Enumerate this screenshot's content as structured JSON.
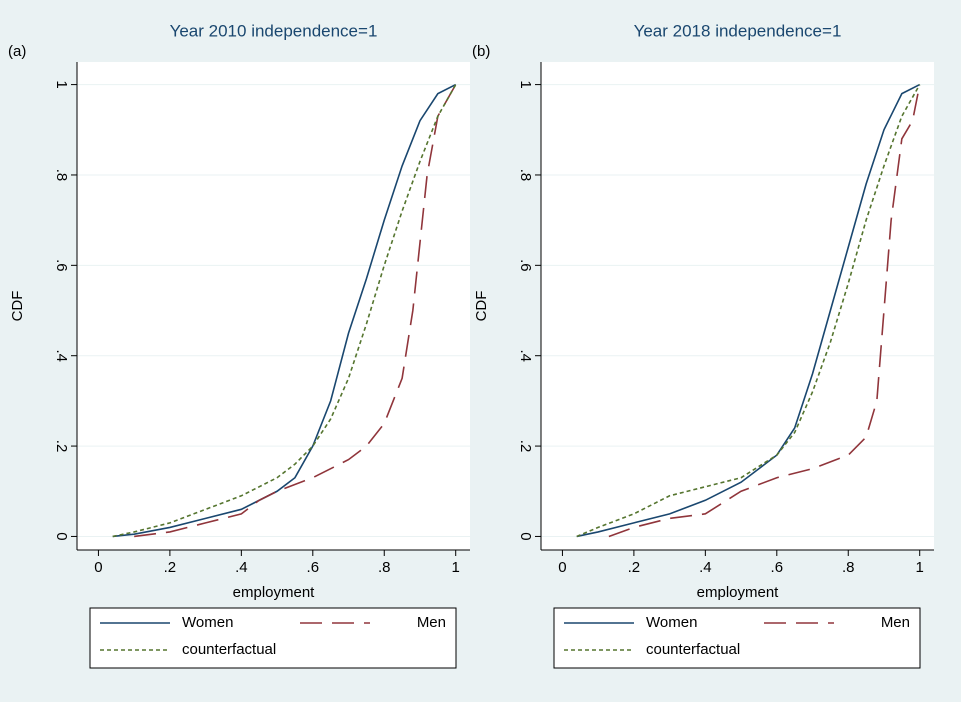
{
  "chart_data": [
    {
      "type": "line",
      "panel_label": "(a)",
      "title": "Year 2010 independence=1",
      "x_label": "employment",
      "y_label": "CDF",
      "xlim": [
        -0.06,
        1.04
      ],
      "ylim": [
        -0.03,
        1.05
      ],
      "grid": true,
      "xticks": [
        0,
        {
          "value": 0.2,
          "label": ".2"
        },
        {
          "value": 0.4,
          "label": ".4"
        },
        {
          "value": 0.6,
          "label": ".6"
        },
        {
          "value": 0.8,
          "label": ".8"
        },
        1
      ],
      "yticks": [
        0,
        {
          "value": 0.2,
          "label": ".2"
        },
        {
          "value": 0.4,
          "label": ".4"
        },
        {
          "value": 0.6,
          "label": ".6"
        },
        {
          "value": 0.8,
          "label": ".8"
        },
        1
      ],
      "series": [
        {
          "name": "Women",
          "color": "#1a476f",
          "dash": "solid",
          "x": [
            0.04,
            0.1,
            0.2,
            0.3,
            0.4,
            0.5,
            0.55,
            0.6,
            0.65,
            0.7,
            0.75,
            0.8,
            0.85,
            0.9,
            0.95,
            1
          ],
          "values": [
            0,
            0.005,
            0.02,
            0.04,
            0.06,
            0.1,
            0.13,
            0.2,
            0.3,
            0.45,
            0.57,
            0.7,
            0.82,
            0.92,
            0.98,
            1
          ]
        },
        {
          "name": "Men",
          "color": "#90353b",
          "dash": "long",
          "x": [
            0.1,
            0.2,
            0.3,
            0.4,
            0.45,
            0.5,
            0.6,
            0.7,
            0.75,
            0.8,
            0.85,
            0.88,
            0.9,
            0.92,
            0.95,
            1
          ],
          "values": [
            0,
            0.01,
            0.03,
            0.05,
            0.08,
            0.1,
            0.13,
            0.17,
            0.2,
            0.25,
            0.35,
            0.5,
            0.65,
            0.8,
            0.93,
            1
          ]
        },
        {
          "name": "counterfactual",
          "color": "#55752f",
          "dash": "short",
          "x": [
            0.04,
            0.1,
            0.2,
            0.3,
            0.4,
            0.5,
            0.55,
            0.6,
            0.65,
            0.7,
            0.75,
            0.8,
            0.85,
            0.9,
            0.95,
            1
          ],
          "values": [
            0,
            0.01,
            0.03,
            0.06,
            0.09,
            0.13,
            0.16,
            0.2,
            0.26,
            0.35,
            0.47,
            0.6,
            0.72,
            0.83,
            0.93,
            1
          ]
        }
      ]
    },
    {
      "type": "line",
      "panel_label": "(b)",
      "title": "Year 2018 independence=1",
      "x_label": "employment",
      "y_label": "CDF",
      "xlim": [
        -0.06,
        1.04
      ],
      "ylim": [
        -0.03,
        1.05
      ],
      "grid": true,
      "xticks": [
        0,
        {
          "value": 0.2,
          "label": ".2"
        },
        {
          "value": 0.4,
          "label": ".4"
        },
        {
          "value": 0.6,
          "label": ".6"
        },
        {
          "value": 0.8,
          "label": ".8"
        },
        1
      ],
      "yticks": [
        0,
        {
          "value": 0.2,
          "label": ".2"
        },
        {
          "value": 0.4,
          "label": ".4"
        },
        {
          "value": 0.6,
          "label": ".6"
        },
        {
          "value": 0.8,
          "label": ".8"
        },
        1
      ],
      "series": [
        {
          "name": "Women",
          "color": "#1a476f",
          "dash": "solid",
          "x": [
            0.04,
            0.1,
            0.2,
            0.3,
            0.4,
            0.5,
            0.6,
            0.65,
            0.7,
            0.75,
            0.8,
            0.85,
            0.9,
            0.95,
            1
          ],
          "values": [
            0,
            0.01,
            0.03,
            0.05,
            0.08,
            0.12,
            0.18,
            0.24,
            0.36,
            0.5,
            0.64,
            0.78,
            0.9,
            0.98,
            1
          ]
        },
        {
          "name": "Men",
          "color": "#90353b",
          "dash": "long",
          "x": [
            0.13,
            0.2,
            0.3,
            0.4,
            0.5,
            0.6,
            0.7,
            0.8,
            0.85,
            0.88,
            0.9,
            0.92,
            0.95,
            0.98,
            1
          ],
          "values": [
            0,
            0.02,
            0.04,
            0.05,
            0.1,
            0.13,
            0.15,
            0.18,
            0.22,
            0.3,
            0.5,
            0.7,
            0.88,
            0.92,
            1
          ]
        },
        {
          "name": "counterfactual",
          "color": "#55752f",
          "dash": "short",
          "x": [
            0.04,
            0.1,
            0.2,
            0.3,
            0.4,
            0.5,
            0.6,
            0.65,
            0.7,
            0.75,
            0.8,
            0.85,
            0.9,
            0.95,
            1
          ],
          "values": [
            0,
            0.02,
            0.05,
            0.09,
            0.11,
            0.13,
            0.18,
            0.23,
            0.32,
            0.43,
            0.56,
            0.7,
            0.82,
            0.93,
            1
          ]
        }
      ]
    }
  ]
}
